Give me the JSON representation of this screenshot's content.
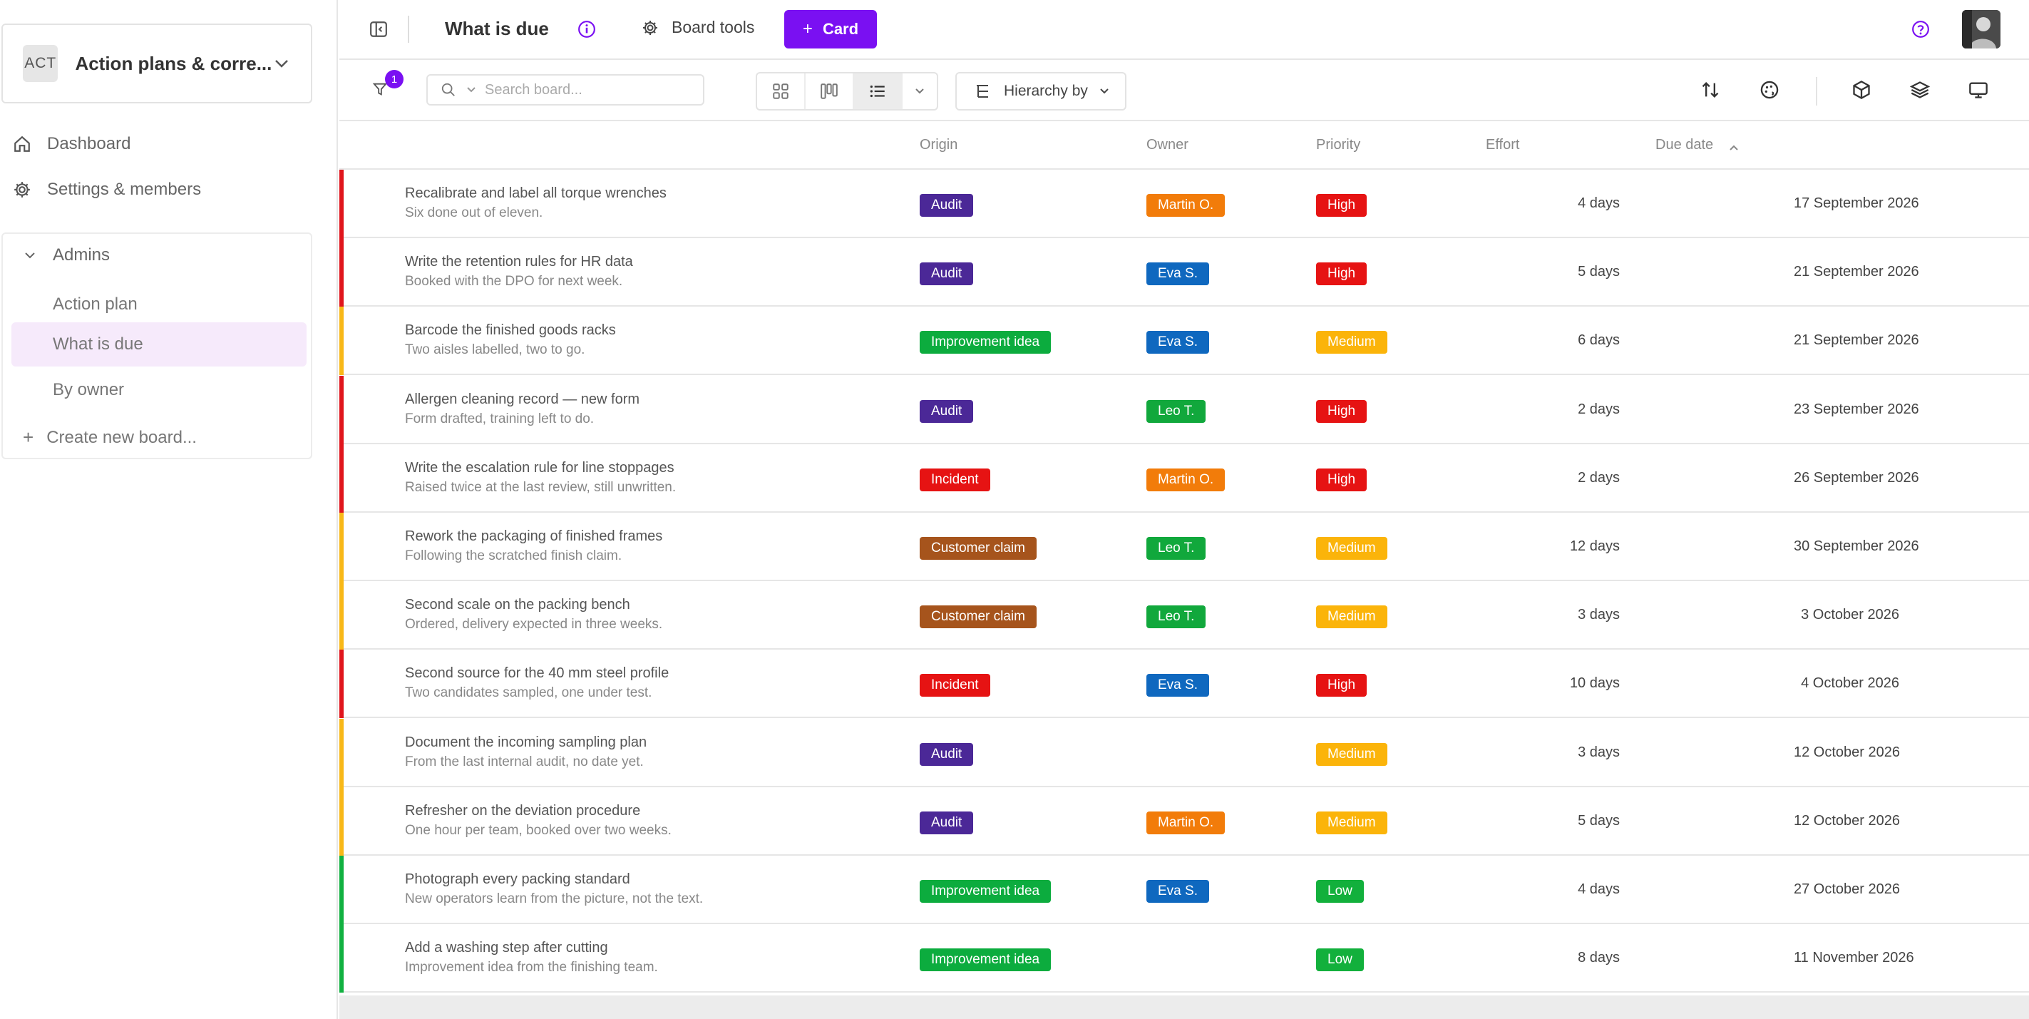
{
  "sidebar": {
    "workspace": {
      "avatar": "ACT",
      "name": "Action plans & corre..."
    },
    "nav": [
      {
        "label": "Dashboard",
        "icon": "home-icon"
      },
      {
        "label": "Settings & members",
        "icon": "gear-icon"
      }
    ],
    "group": {
      "label": "Admins"
    },
    "boards": [
      {
        "label": "Action plan",
        "active": false
      },
      {
        "label": "What is due",
        "active": true
      },
      {
        "label": "By owner",
        "active": false
      }
    ],
    "create_label": "Create new board..."
  },
  "topbar": {
    "title": "What is due",
    "board_tools_label": "Board tools",
    "card_button_label": "Card"
  },
  "toolbar": {
    "filter_count": "1",
    "search_placeholder": "Search board...",
    "hierarchy_label": "Hierarchy by"
  },
  "table": {
    "columns": {
      "origin": "Origin",
      "owner": "Owner",
      "priority": "Priority",
      "effort": "Effort",
      "due_date": "Due date"
    },
    "rows": [
      {
        "title": "Recalibrate and label all torque wrenches",
        "subtitle": "Six done out of eleven.",
        "origin": "Audit",
        "owner": "Martin O.",
        "priority": "High",
        "effort": "4 days",
        "due": "17 September 2026"
      },
      {
        "title": "Write the retention rules for HR data",
        "subtitle": "Booked with the DPO for next week.",
        "origin": "Audit",
        "owner": "Eva S.",
        "priority": "High",
        "effort": "5 days",
        "due": "21 September 2026"
      },
      {
        "title": "Barcode the finished goods racks",
        "subtitle": "Two aisles labelled, two to go.",
        "origin": "Improvement idea",
        "owner": "Eva S.",
        "priority": "Medium",
        "effort": "6 days",
        "due": "21 September 2026"
      },
      {
        "title": "Allergen cleaning record — new form",
        "subtitle": "Form drafted, training left to do.",
        "origin": "Audit",
        "owner": "Leo T.",
        "priority": "High",
        "effort": "2 days",
        "due": "23 September 2026"
      },
      {
        "title": "Write the escalation rule for line stoppages",
        "subtitle": "Raised twice at the last review, still unwritten.",
        "origin": "Incident",
        "owner": "Martin O.",
        "priority": "High",
        "effort": "2 days",
        "due": "26 September 2026"
      },
      {
        "title": "Rework the packaging of finished frames",
        "subtitle": "Following the scratched finish claim.",
        "origin": "Customer claim",
        "owner": "Leo T.",
        "priority": "Medium",
        "effort": "12 days",
        "due": "30 September 2026"
      },
      {
        "title": "Second scale on the packing bench",
        "subtitle": "Ordered, delivery expected in three weeks.",
        "origin": "Customer claim",
        "owner": "Leo T.",
        "priority": "Medium",
        "effort": "3 days",
        "due": "3 October 2026"
      },
      {
        "title": "Second source for the 40 mm steel profile",
        "subtitle": "Two candidates sampled, one under test.",
        "origin": "Incident",
        "owner": "Eva S.",
        "priority": "High",
        "effort": "10 days",
        "due": "4 October 2026"
      },
      {
        "title": "Document the incoming sampling plan",
        "subtitle": "From the last internal audit, no date yet.",
        "origin": "Audit",
        "owner": "",
        "priority": "Medium",
        "effort": "3 days",
        "due": "12 October 2026"
      },
      {
        "title": "Refresher on the deviation procedure",
        "subtitle": "One hour per team, booked over two weeks.",
        "origin": "Audit",
        "owner": "Martin O.",
        "priority": "Medium",
        "effort": "5 days",
        "due": "12 October 2026"
      },
      {
        "title": "Photograph every packing standard",
        "subtitle": "New operators learn from the picture, not the text.",
        "origin": "Improvement idea",
        "owner": "Eva S.",
        "priority": "Low",
        "effort": "4 days",
        "due": "27 October 2026"
      },
      {
        "title": "Add a washing step after cutting",
        "subtitle": "Improvement idea from the finishing team.",
        "origin": "Improvement idea",
        "owner": "",
        "priority": "Low",
        "effort": "8 days",
        "due": "11 November 2026"
      }
    ]
  },
  "colors": {
    "accent": "#7a10f2",
    "origin": {
      "Audit": "#4b2897",
      "Improvement idea": "#0cac3e",
      "Incident": "#e61313",
      "Customer claim": "#a6541c"
    },
    "owner": {
      "Martin O.": "#f27c0a",
      "Eva S.": "#0f68bf",
      "Leo T.": "#11a83c"
    },
    "priority": {
      "High": "#e61313",
      "Medium": "#fbb40a",
      "Low": "#12b03c"
    },
    "row_bar": {
      "High": "#e0151c",
      "Medium": "#f8b817",
      "Low": "#11b140"
    }
  }
}
